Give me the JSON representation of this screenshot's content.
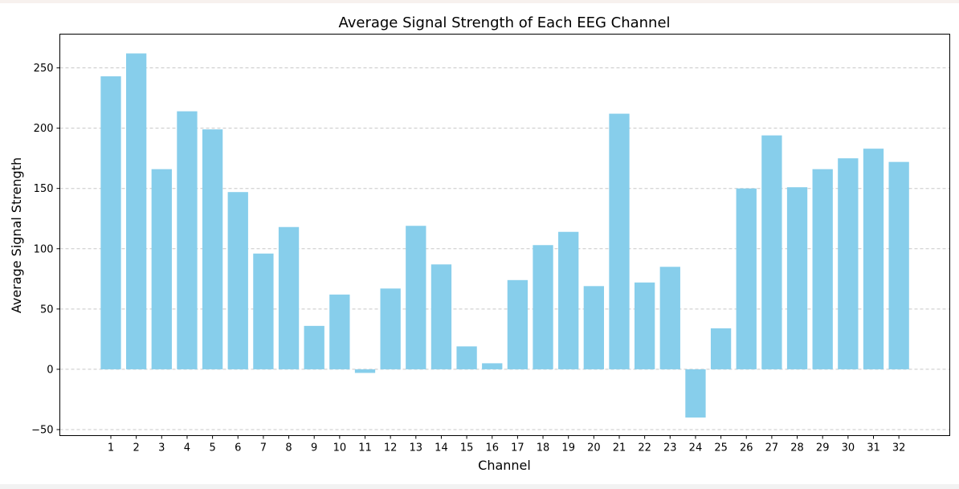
{
  "chart_data": {
    "type": "bar",
    "title": "Average Signal Strength of Each EEG Channel",
    "xlabel": "Channel",
    "ylabel": "Average Signal Strength",
    "categories": [
      "1",
      "2",
      "3",
      "4",
      "5",
      "6",
      "7",
      "8",
      "9",
      "10",
      "11",
      "12",
      "13",
      "14",
      "15",
      "16",
      "17",
      "18",
      "19",
      "20",
      "21",
      "22",
      "23",
      "24",
      "25",
      "26",
      "27",
      "28",
      "29",
      "30",
      "31",
      "32"
    ],
    "values": [
      243,
      262,
      166,
      214,
      199,
      147,
      96,
      118,
      36,
      62,
      -3,
      67,
      119,
      87,
      19,
      5,
      74,
      103,
      114,
      69,
      212,
      72,
      85,
      -40,
      34,
      150,
      194,
      151,
      166,
      175,
      183,
      172
    ],
    "ylim": [
      -55,
      278
    ],
    "yticks": [
      -50,
      0,
      50,
      100,
      150,
      200,
      250
    ],
    "grid": "y, dashed",
    "bar_color": "#87ceeb"
  }
}
